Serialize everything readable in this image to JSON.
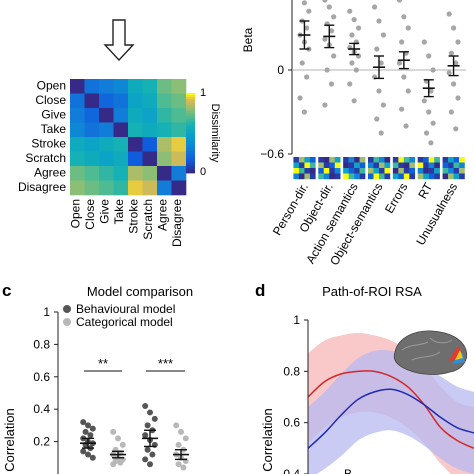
{
  "panel_labels": {
    "c": "c",
    "d": "d"
  },
  "colors": {
    "dots": "#a6a6a6",
    "dark_dots": "#555555",
    "light_dots": "#b8b8b8",
    "red": "#d62728",
    "red_band": "#f7b6b6",
    "blue": "#1f2bb4",
    "blue_band": "#b7b9f0",
    "zero_line": "#9a9a9a"
  },
  "chart_data": [
    {
      "id": "dissimilarity-matrix",
      "type": "heatmap",
      "labels": [
        "Open",
        "Close",
        "Give",
        "Take",
        "Stroke",
        "Scratch",
        "Agree",
        "Disagree"
      ],
      "colorbar": {
        "label": "Dissimilarity",
        "min_label": "0",
        "max_label": "1"
      },
      "matrix": [
        [
          0.0,
          0.25,
          0.3,
          0.35,
          0.55,
          0.6,
          0.75,
          0.8
        ],
        [
          0.25,
          0.0,
          0.2,
          0.25,
          0.5,
          0.55,
          0.7,
          0.75
        ],
        [
          0.3,
          0.2,
          0.0,
          0.3,
          0.55,
          0.5,
          0.65,
          0.7
        ],
        [
          0.35,
          0.25,
          0.3,
          0.0,
          0.6,
          0.55,
          0.6,
          0.65
        ],
        [
          0.55,
          0.5,
          0.55,
          0.6,
          0.0,
          0.15,
          0.85,
          0.95
        ],
        [
          0.6,
          0.55,
          0.5,
          0.55,
          0.15,
          0.0,
          0.8,
          0.9
        ],
        [
          0.75,
          0.7,
          0.65,
          0.6,
          0.85,
          0.8,
          0.0,
          0.3
        ],
        [
          0.8,
          0.75,
          0.7,
          0.65,
          0.95,
          0.9,
          0.3,
          0.0
        ]
      ]
    },
    {
      "id": "beta-plot",
      "type": "scatter",
      "ylabel": "Beta",
      "ylim": [
        -0.6,
        0.6
      ],
      "yticks": [
        {
          "value": 0,
          "label": "0"
        },
        {
          "value": -0.6,
          "label": "−0.6"
        }
      ],
      "categories": [
        "Person-dir.",
        "Object-dir.",
        "Action semantics",
        "Object-semantics",
        "Errors",
        "RT",
        "Unusualness"
      ],
      "means": [
        0.25,
        0.24,
        0.15,
        0.02,
        0.07,
        -0.13,
        0.03
      ],
      "errors": [
        0.1,
        0.08,
        0.04,
        0.08,
        0.06,
        0.06,
        0.07
      ],
      "points": [
        [
          0.52,
          0.48,
          0.42,
          0.35,
          0.3,
          0.25,
          0.2,
          0.15,
          0.05,
          -0.05,
          -0.2,
          -0.3
        ],
        [
          0.5,
          0.45,
          0.38,
          0.33,
          0.28,
          0.22,
          0.18,
          0.1,
          0.0,
          -0.1,
          -0.25
        ],
        [
          0.42,
          0.36,
          0.3,
          0.25,
          0.2,
          0.16,
          0.13,
          0.1,
          0.05,
          0.0,
          -0.1,
          -0.22
        ],
        [
          0.45,
          0.35,
          0.25,
          0.15,
          0.05,
          -0.05,
          -0.15,
          -0.25,
          -0.35,
          -0.45
        ],
        [
          0.5,
          0.38,
          0.3,
          0.2,
          0.12,
          0.05,
          -0.05,
          -0.15,
          -0.28,
          -0.4
        ],
        [
          0.2,
          0.1,
          0.0,
          -0.08,
          -0.15,
          -0.22,
          -0.3,
          -0.38,
          -0.45,
          -0.52
        ],
        [
          0.4,
          0.3,
          0.2,
          0.12,
          0.05,
          -0.02,
          -0.1,
          -0.2,
          -0.3,
          -0.42
        ]
      ]
    },
    {
      "id": "model-comparison",
      "type": "scatter",
      "title": "Model comparison",
      "ylabel": "Correlation",
      "ylim": [
        0,
        1
      ],
      "yticks": [
        {
          "value": 1,
          "label": "1"
        },
        {
          "value": 0.8,
          "label": "0.8"
        },
        {
          "value": 0.6,
          "label": "0.6"
        },
        {
          "value": 0.4,
          "label": "0.4"
        },
        {
          "value": 0.2,
          "label": "0.2"
        }
      ],
      "legend": {
        "placement": "top-left",
        "entries": [
          "Behavioural model",
          "Categorical model"
        ]
      },
      "significance": [
        "**",
        "***"
      ],
      "groups": [
        {
          "series": "Behavioural model",
          "mean": 0.19,
          "error": 0.03,
          "points": [
            0.32,
            0.3,
            0.28,
            0.26,
            0.24,
            0.22,
            0.2,
            0.19,
            0.18,
            0.16,
            0.14,
            0.12,
            0.1
          ]
        },
        {
          "series": "Categorical model",
          "mean": 0.12,
          "error": 0.02,
          "points": [
            0.26,
            0.22,
            0.18,
            0.15,
            0.13,
            0.12,
            0.1,
            0.09,
            0.08,
            0.07,
            0.06
          ]
        },
        {
          "series": "Behavioural model",
          "mean": 0.22,
          "error": 0.05,
          "points": [
            0.42,
            0.38,
            0.34,
            0.3,
            0.27,
            0.24,
            0.21,
            0.18,
            0.15,
            0.12,
            0.09,
            0.06
          ]
        },
        {
          "series": "Categorical model",
          "mean": 0.12,
          "error": 0.03,
          "points": [
            0.3,
            0.26,
            0.22,
            0.18,
            0.15,
            0.12,
            0.1,
            0.08,
            0.06,
            0.04
          ]
        }
      ]
    },
    {
      "id": "path-of-roi-rsa",
      "type": "line",
      "title": "Path-of-ROI RSA",
      "ylabel": "Correlation",
      "xlabel_partial": "B",
      "ylim": [
        0.4,
        1.0
      ],
      "yticks": [
        {
          "value": 1,
          "label": "1"
        },
        {
          "value": 0.8,
          "label": "0.8"
        },
        {
          "value": 0.6,
          "label": "0.6"
        },
        {
          "value": 0.4,
          "label": "0.4"
        }
      ],
      "x": [
        0,
        1,
        2,
        3,
        4,
        5,
        6,
        7,
        8,
        9,
        10
      ],
      "series": [
        {
          "color": "red",
          "values": [
            0.7,
            0.76,
            0.79,
            0.8,
            0.8,
            0.78,
            0.74,
            0.67,
            0.58,
            0.53,
            0.5
          ],
          "band_upper": [
            0.87,
            0.92,
            0.94,
            0.95,
            0.94,
            0.92,
            0.88,
            0.82,
            0.74,
            0.68,
            0.66
          ],
          "band_lower": [
            0.52,
            0.58,
            0.62,
            0.64,
            0.64,
            0.62,
            0.58,
            0.52,
            0.44,
            0.38,
            0.35
          ]
        },
        {
          "color": "blue",
          "values": [
            0.5,
            0.56,
            0.63,
            0.69,
            0.72,
            0.73,
            0.71,
            0.67,
            0.62,
            0.58,
            0.56
          ],
          "band_upper": [
            0.66,
            0.72,
            0.79,
            0.85,
            0.88,
            0.88,
            0.86,
            0.82,
            0.78,
            0.74,
            0.72
          ],
          "band_lower": [
            0.38,
            0.42,
            0.47,
            0.53,
            0.56,
            0.57,
            0.55,
            0.51,
            0.46,
            0.42,
            0.4
          ]
        }
      ]
    }
  ]
}
